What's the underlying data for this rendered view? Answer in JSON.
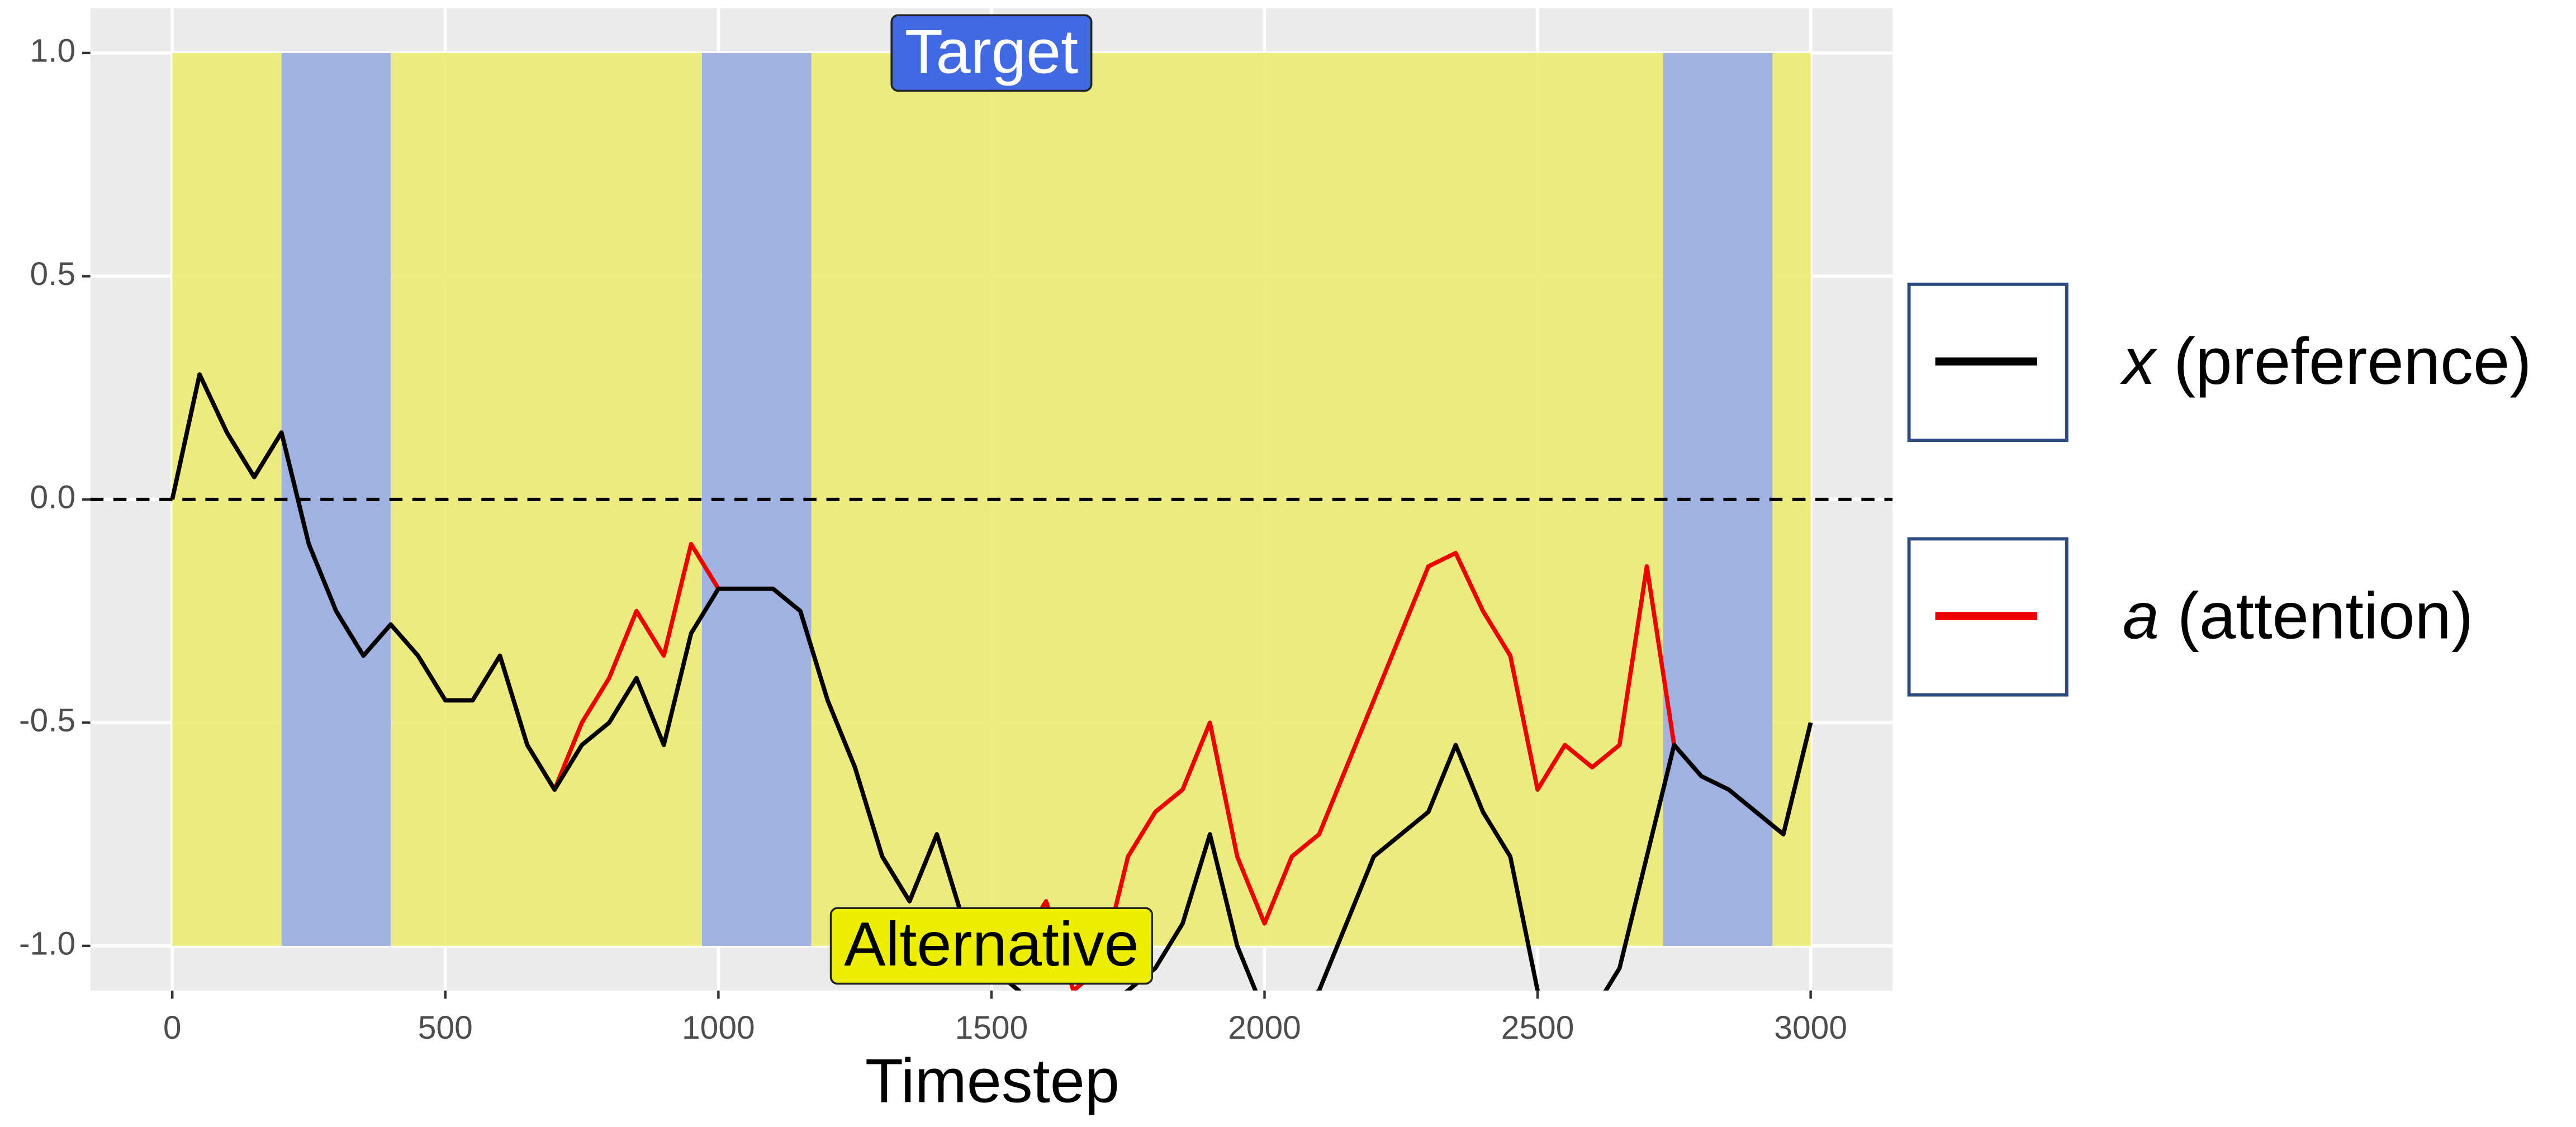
{
  "chart_data": {
    "type": "line",
    "x_label": "Timestep",
    "xlim": [
      -150,
      3150
    ],
    "xticks": [
      0,
      500,
      1000,
      1500,
      2000,
      2500,
      3000
    ],
    "ylim": [
      -1.1,
      1.1
    ],
    "yticks": [
      {
        "value": 1,
        "label": "1.0"
      },
      {
        "value": 0.5,
        "label": "0.5"
      },
      {
        "value": 0,
        "label": "0.0"
      },
      {
        "value": -0.5,
        "label": "-0.5"
      },
      {
        "value": -1,
        "label": "-1.0"
      }
    ],
    "grid": true,
    "hline": 0,
    "region_y": [
      -1,
      1
    ],
    "regions": [
      {
        "start": 0,
        "end": 3000,
        "color": "#ebeb74"
      },
      {
        "start": 200,
        "end": 400,
        "color": "#98acec"
      },
      {
        "start": 970,
        "end": 1170,
        "color": "#98acec"
      },
      {
        "start": 2730,
        "end": 2930,
        "color": "#98acec"
      }
    ],
    "annotations": [
      {
        "text": "Target",
        "x": 1500,
        "y": 1,
        "fill": "#4169e1",
        "color": "#ffffff"
      },
      {
        "text": "Alternative",
        "x": 1500,
        "y": -1,
        "fill": "#eeee00",
        "color": "#000000"
      }
    ],
    "x": [
      0,
      50,
      100,
      150,
      200,
      250,
      300,
      350,
      400,
      450,
      500,
      550,
      600,
      650,
      700,
      750,
      800,
      850,
      900,
      950,
      1000,
      1050,
      1100,
      1150,
      1200,
      1250,
      1300,
      1350,
      1400,
      1450,
      1500,
      1550,
      1600,
      1650,
      1700,
      1750,
      1800,
      1850,
      1900,
      1950,
      2000,
      2050,
      2100,
      2150,
      2200,
      2250,
      2300,
      2350,
      2400,
      2450,
      2500,
      2550,
      2600,
      2650,
      2700,
      2750,
      2800,
      2850,
      2900,
      2950,
      3000
    ],
    "series": [
      {
        "name": "a (attention)",
        "color": "#ee0000",
        "values": [
          0,
          0.28,
          0.15,
          0.05,
          0.15,
          -0.1,
          -0.25,
          -0.35,
          -0.28,
          -0.35,
          -0.45,
          -0.45,
          -0.35,
          -0.55,
          -0.65,
          -0.5,
          -0.4,
          -0.25,
          -0.35,
          -0.1,
          -0.2,
          -0.2,
          -0.2,
          -0.25,
          -0.45,
          -0.6,
          -0.8,
          -0.9,
          -0.75,
          -0.95,
          -1.05,
          -1.0,
          -0.9,
          -1.1,
          -1.05,
          -0.8,
          -0.7,
          -0.65,
          -0.5,
          -0.8,
          -0.95,
          -0.8,
          -0.75,
          -0.6,
          -0.45,
          -0.3,
          -0.15,
          -0.12,
          -0.25,
          -0.35,
          -0.65,
          -0.55,
          -0.6,
          -0.55,
          -0.15,
          -0.55,
          -0.62,
          -0.65,
          -0.7,
          -0.75,
          -0.5
        ]
      },
      {
        "name": "x (preference)",
        "color": "#000000",
        "values": [
          0,
          0.28,
          0.15,
          0.05,
          0.15,
          -0.1,
          -0.25,
          -0.35,
          -0.28,
          -0.35,
          -0.45,
          -0.45,
          -0.35,
          -0.55,
          -0.65,
          -0.55,
          -0.5,
          -0.4,
          -0.55,
          -0.3,
          -0.2,
          -0.2,
          -0.2,
          -0.25,
          -0.45,
          -0.6,
          -0.8,
          -0.9,
          -0.75,
          -0.95,
          -1.05,
          -1.1,
          -1.2,
          -1.2,
          -1.15,
          -1.1,
          -1.05,
          -0.95,
          -0.75,
          -1.0,
          -1.15,
          -1.15,
          -1.1,
          -0.95,
          -0.8,
          -0.75,
          -0.7,
          -0.55,
          -0.7,
          -0.8,
          -1.1,
          -1.2,
          -1.15,
          -1.05,
          -0.8,
          -0.55,
          -0.62,
          -0.65,
          -0.7,
          -0.75,
          -0.5
        ]
      }
    ],
    "legend_order": [
      1,
      0
    ]
  }
}
